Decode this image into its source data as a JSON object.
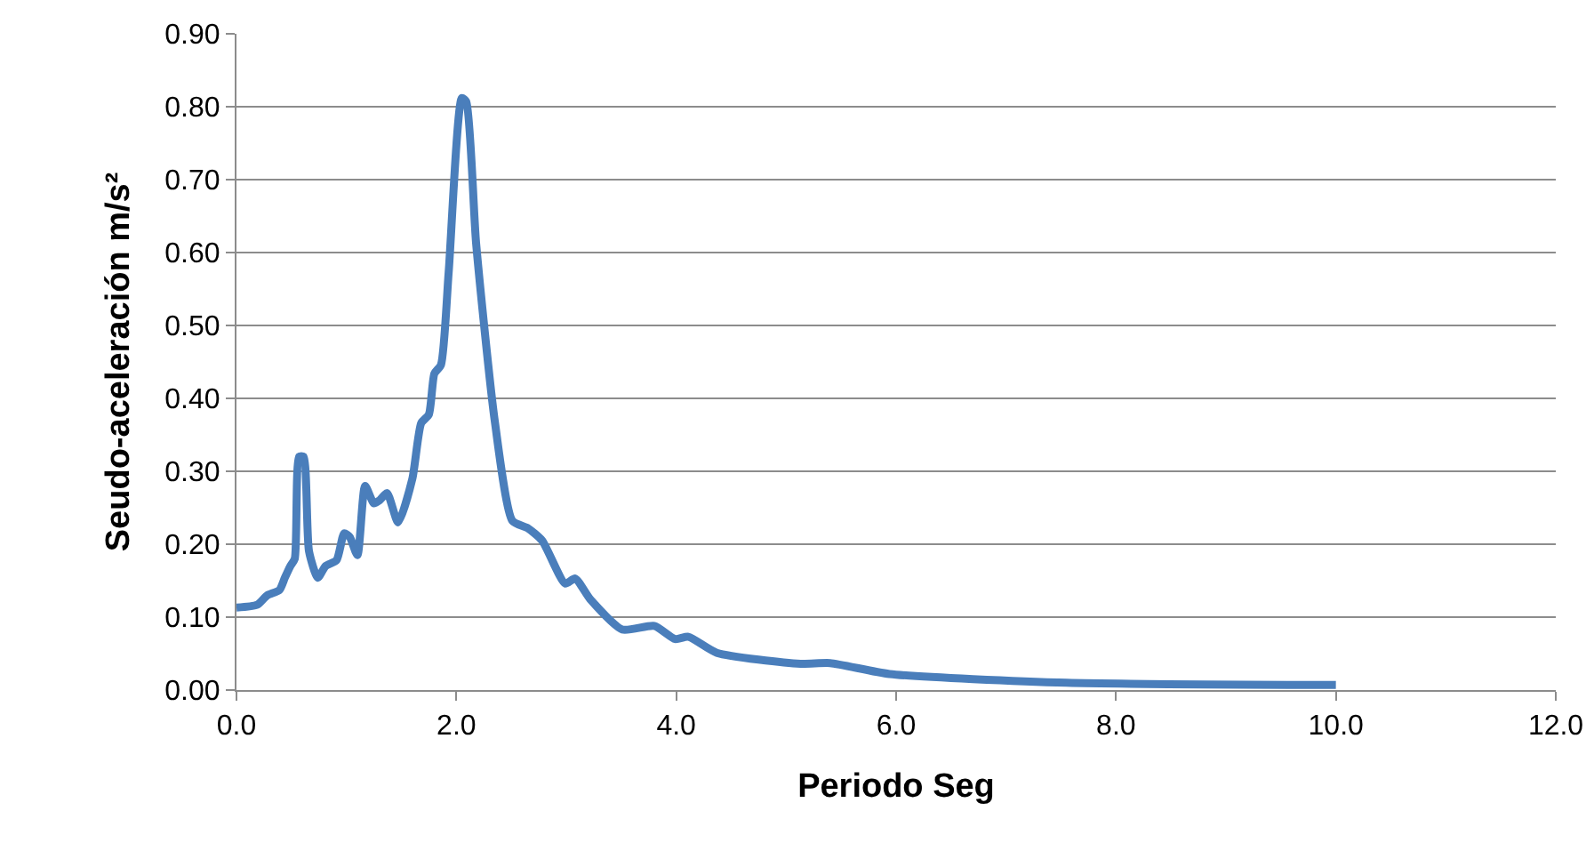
{
  "chart_data": {
    "type": "line",
    "xlabel": "Periodo Seg",
    "ylabel": "Seudo-aceleración m/s²",
    "xlim": [
      0,
      12
    ],
    "xticks": [
      {
        "value": 0,
        "label": "0.0"
      },
      {
        "value": 2,
        "label": "2.0"
      },
      {
        "value": 4,
        "label": "4.0"
      },
      {
        "value": 6,
        "label": "6.0"
      },
      {
        "value": 8,
        "label": "8.0"
      },
      {
        "value": 10,
        "label": "10.0"
      },
      {
        "value": 12,
        "label": "12.0"
      }
    ],
    "ylim": [
      0,
      0.9
    ],
    "yticks": [
      {
        "value": 0,
        "label": "0.00"
      },
      {
        "value": 0.1,
        "label": "0.10"
      },
      {
        "value": 0.2,
        "label": "0.20"
      },
      {
        "value": 0.3,
        "label": "0.30"
      },
      {
        "value": 0.4,
        "label": "0.40"
      },
      {
        "value": 0.5,
        "label": "0.50"
      },
      {
        "value": 0.6,
        "label": "0.60"
      },
      {
        "value": 0.7,
        "label": "0.70"
      },
      {
        "value": 0.8,
        "label": "0.80"
      },
      {
        "value": 0.9,
        "label": "0.90"
      }
    ],
    "grid": "y",
    "legend": false,
    "marker": "none",
    "line_style": "solid",
    "series": [
      {
        "color": "#4a7ebb",
        "x": [
          0,
          0.19,
          0.28,
          0.39,
          0.44,
          0.49,
          0.53,
          0.57,
          0.61,
          0.66,
          0.74,
          0.81,
          0.91,
          0.98,
          1.03,
          1.1,
          1.17,
          1.25,
          1.3,
          1.37,
          1.47,
          1.6,
          1.68,
          1.75,
          1.8,
          1.86,
          1.93,
          2.05,
          2.09,
          2.18,
          2.35,
          2.51,
          2.65,
          2.78,
          2.99,
          3.08,
          3.22,
          3.51,
          3.8,
          3.99,
          4.11,
          4.37,
          5.13,
          5.4,
          5.94,
          7.55,
          10
        ],
        "values": [
          0.113,
          0.117,
          0.13,
          0.137,
          0.154,
          0.17,
          0.18,
          0.32,
          0.32,
          0.19,
          0.154,
          0.17,
          0.178,
          0.215,
          0.21,
          0.185,
          0.28,
          0.256,
          0.26,
          0.27,
          0.23,
          0.29,
          0.366,
          0.378,
          0.434,
          0.446,
          0.573,
          0.812,
          0.807,
          0.612,
          0.368,
          0.232,
          0.222,
          0.205,
          0.146,
          0.153,
          0.124,
          0.083,
          0.088,
          0.07,
          0.073,
          0.051,
          0.036,
          0.037,
          0.022,
          0.01,
          0.007
        ]
      }
    ]
  }
}
